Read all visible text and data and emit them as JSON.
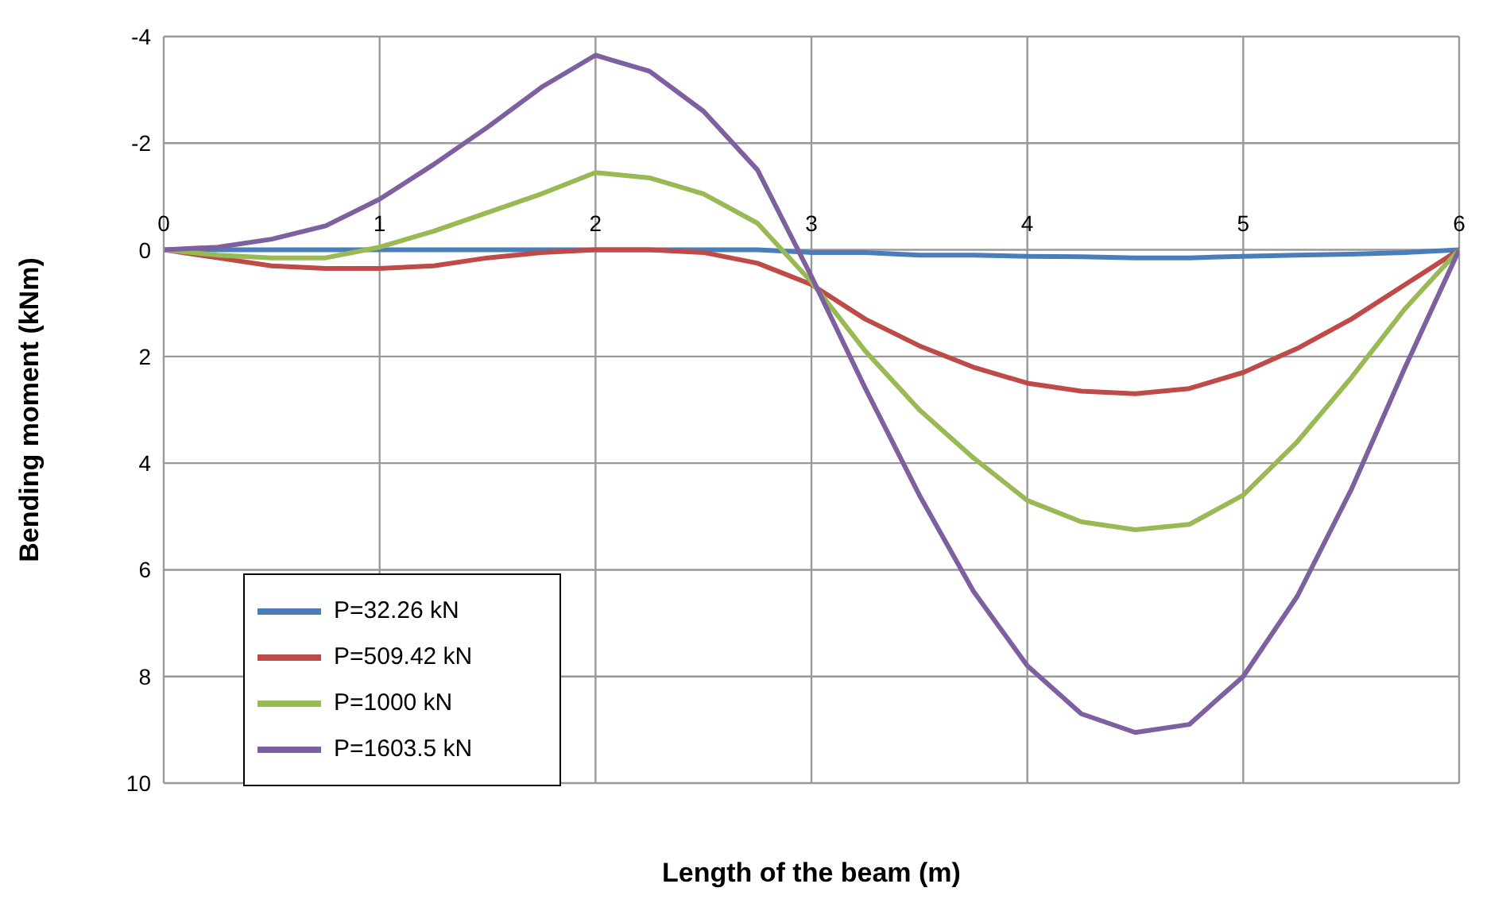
{
  "chart_data": {
    "type": "line",
    "xlabel": "Length of the beam (m)",
    "ylabel": "Bending moment (kNm)",
    "x": [
      0,
      0.25,
      0.5,
      0.75,
      1,
      1.25,
      1.5,
      1.75,
      2,
      2.25,
      2.5,
      2.75,
      3,
      3.25,
      3.5,
      3.75,
      4,
      4.25,
      4.5,
      4.75,
      5,
      5.25,
      5.5,
      5.75,
      6
    ],
    "series": [
      {
        "name": "P=32.26 kN",
        "color": "#4a7ebb",
        "values": [
          0,
          0,
          0,
          0,
          0,
          0,
          0,
          0,
          0,
          0,
          0,
          0,
          0.05,
          0.05,
          0.1,
          0.1,
          0.12,
          0.13,
          0.15,
          0.15,
          0.12,
          0.1,
          0.08,
          0.05,
          0
        ]
      },
      {
        "name": "P=509.42 kN",
        "color": "#be4b48",
        "values": [
          0,
          0.15,
          0.3,
          0.35,
          0.35,
          0.3,
          0.15,
          0.05,
          0,
          0,
          0.05,
          0.25,
          0.65,
          1.3,
          1.8,
          2.2,
          2.5,
          2.65,
          2.7,
          2.6,
          2.3,
          1.85,
          1.3,
          0.65,
          0
        ]
      },
      {
        "name": "P=1000 kN",
        "color": "#98b954",
        "values": [
          0,
          0.1,
          0.15,
          0.15,
          -0.05,
          -0.35,
          -0.7,
          -1.05,
          -1.45,
          -1.35,
          -1.05,
          -0.5,
          0.6,
          1.9,
          3.0,
          3.9,
          4.7,
          5.1,
          5.25,
          5.15,
          4.6,
          3.6,
          2.4,
          1.1,
          0
        ]
      },
      {
        "name": "P=1603.5 kN",
        "color": "#7d60a0",
        "values": [
          0,
          -0.05,
          -0.2,
          -0.45,
          -0.95,
          -1.6,
          -2.3,
          -3.05,
          -3.65,
          -3.35,
          -2.6,
          -1.5,
          0.5,
          2.6,
          4.6,
          6.4,
          7.8,
          8.7,
          9.05,
          8.9,
          8.0,
          6.5,
          4.5,
          2.2,
          0
        ]
      }
    ],
    "xlim": [
      0,
      6
    ],
    "xticks": [
      0,
      1,
      2,
      3,
      4,
      5,
      6
    ],
    "ylim": [
      10,
      -4
    ],
    "yticks": [
      -4,
      -2,
      0,
      2,
      4,
      6,
      8,
      10
    ],
    "grid": true,
    "legend": "bottom left",
    "marker": "none",
    "line_style": "solid"
  }
}
